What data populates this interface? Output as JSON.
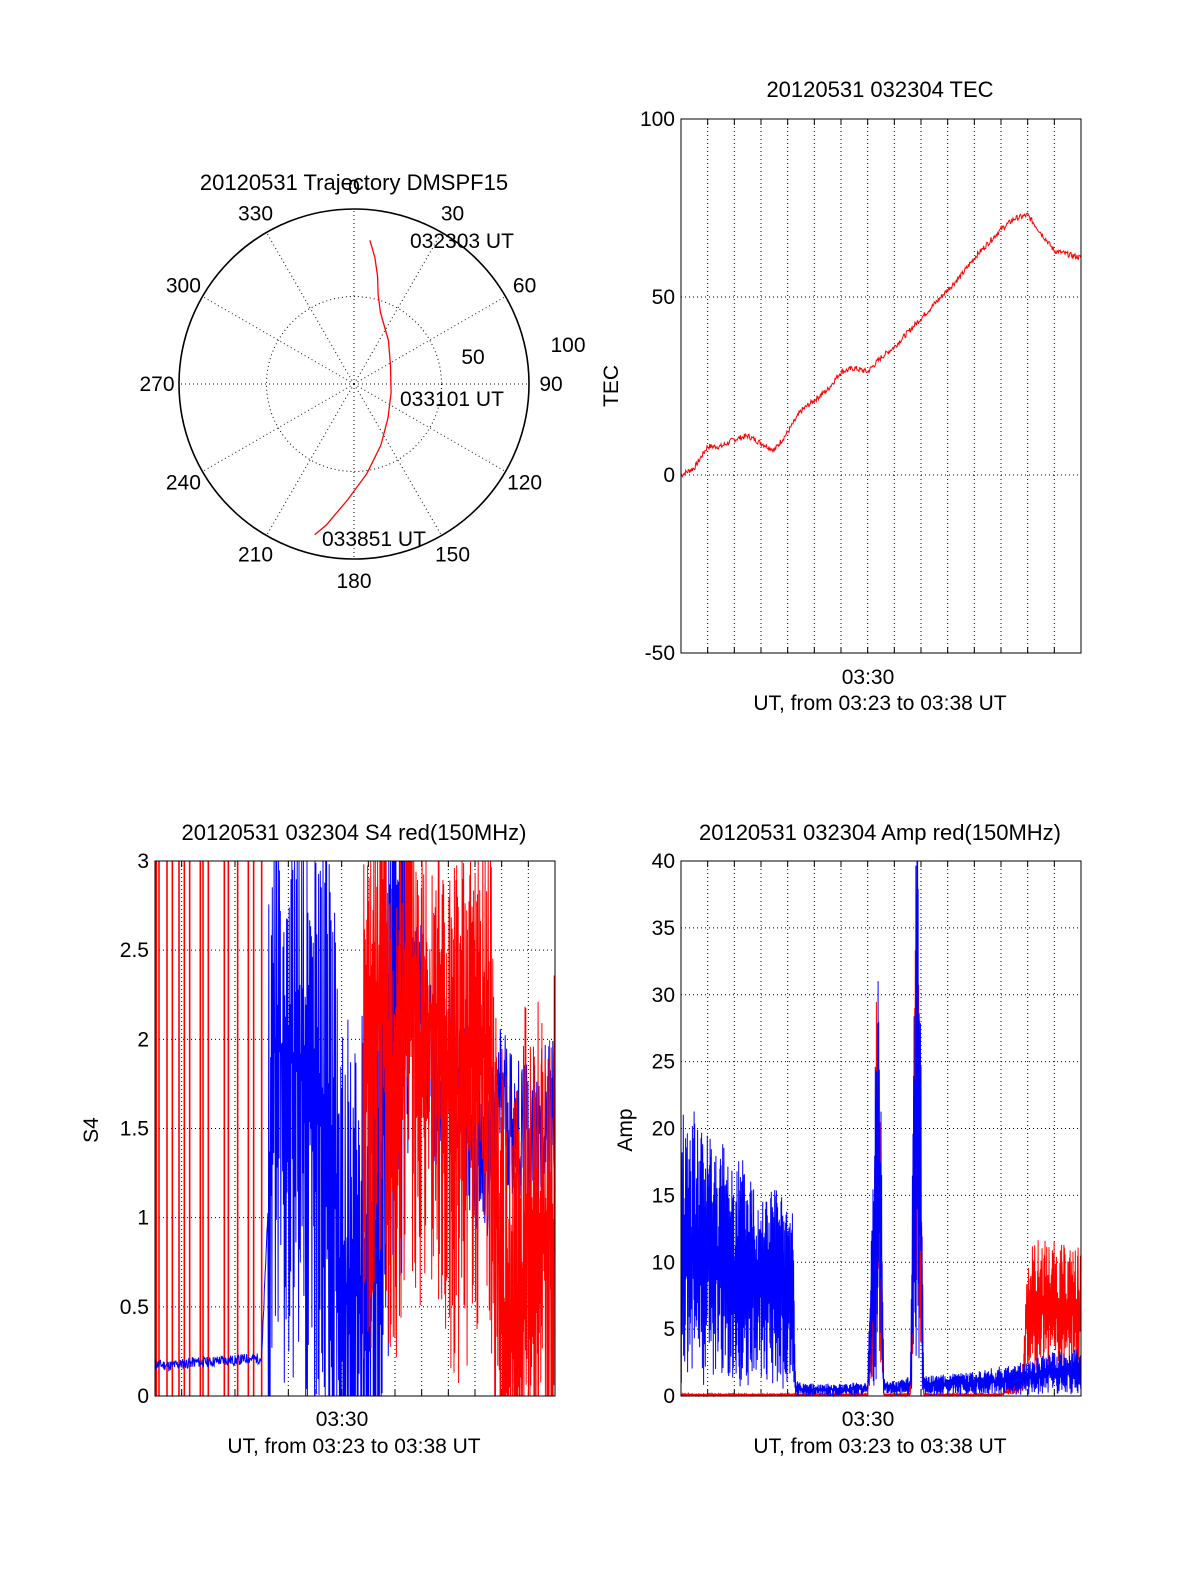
{
  "colors": {
    "red": "#ff0000",
    "blue": "#0000ff",
    "axis": "#000000",
    "grid": "#000000"
  },
  "chart_data": [
    {
      "id": "polar",
      "type": "polar",
      "title": "20120531 Trajectory DMSPF15",
      "angle_ticks": [
        "0",
        "30",
        "60",
        "90",
        "120",
        "150",
        "180",
        "210",
        "240",
        "270",
        "300",
        "330"
      ],
      "radial_ticks": [
        "50",
        "100"
      ],
      "rlim": [
        0,
        100
      ],
      "annotations": [
        "032303 UT",
        "033101 UT",
        "033851 UT"
      ],
      "trajectory": [
        {
          "az": 6.3,
          "r": 82.6
        },
        {
          "az": 9.4,
          "r": 73.2
        },
        {
          "az": 12.4,
          "r": 62.8
        },
        {
          "az": 15.0,
          "r": 53.1
        },
        {
          "az": 20.2,
          "r": 43.7
        },
        {
          "az": 38.6,
          "r": 31.6
        },
        {
          "az": 63.6,
          "r": 23.3
        },
        {
          "az": 103.4,
          "r": 21.8
        },
        {
          "az": 135.0,
          "r": 27.5
        },
        {
          "az": 156.4,
          "r": 38.3
        },
        {
          "az": 171.9,
          "r": 51.8
        },
        {
          "az": 183.2,
          "r": 66.4
        },
        {
          "az": 191.1,
          "r": 82.1
        },
        {
          "az": 194.6,
          "r": 89.0
        }
      ]
    },
    {
      "id": "tec",
      "type": "line",
      "title": "20120531 032304 TEC",
      "ylabel": "TEC",
      "xlabel": "UT, from 03:23 to 03:38 UT",
      "xtick_label": "03:30",
      "ylim": [
        -50,
        100
      ],
      "yticks": [
        "-50",
        "0",
        "50",
        "100"
      ],
      "series": [
        {
          "name": "TEC",
          "color": "red",
          "x": [
            0,
            0.5,
            1.0,
            1.5,
            2.0,
            2.5,
            3.0,
            3.5,
            4.0,
            4.5,
            5.0,
            5.5,
            6.0,
            6.5,
            7.0,
            7.5,
            8.0,
            8.5,
            9.0,
            9.5,
            10.0,
            10.5,
            11.0,
            11.5,
            12.0,
            12.5,
            13.0,
            13.5,
            14.0,
            14.5,
            15.0
          ],
          "y": [
            0,
            2,
            8,
            8,
            10,
            11,
            9,
            7,
            12,
            18,
            21,
            24,
            29,
            30,
            29,
            33,
            36,
            40,
            44,
            48,
            52,
            56,
            61,
            65,
            69,
            72,
            73,
            68,
            63,
            62,
            61
          ]
        }
      ]
    },
    {
      "id": "s4",
      "type": "line",
      "title": "20120531 032304 S4 red(150MHz)",
      "ylabel": "S4",
      "xlabel": "UT, from 03:23 to 03:38 UT",
      "xtick_label": "03:30",
      "ylim": [
        0,
        3
      ],
      "yticks": [
        "0",
        "0.5",
        "1",
        "1.5",
        "2",
        "2.5",
        "3"
      ],
      "series": [
        {
          "name": "red",
          "color": "red",
          "x": [
            8.0,
            8.5,
            9.0,
            9.5,
            10.0,
            10.5,
            11.0,
            11.5,
            12.0,
            12.5,
            13.0,
            13.5,
            14.0,
            14.5,
            15.0
          ],
          "y": [
            1.8,
            2.4,
            1.6,
            2.5,
            1.9,
            2.2,
            1.7,
            1.7,
            2.0,
            1.9,
            0.6,
            0.3,
            1.0,
            0.8,
            1.0
          ]
        },
        {
          "name": "blue",
          "color": "blue",
          "x": [
            0,
            0.5,
            1.0,
            1.5,
            2.0,
            2.5,
            3.0,
            3.5,
            4.0,
            4.5,
            5.0,
            5.5,
            6.0,
            6.5,
            7.0,
            7.5,
            8.0,
            8.5,
            9.0,
            9.5,
            10.0,
            10.5,
            11.0,
            11.5,
            12.0,
            12.5,
            13.0,
            13.5,
            14.0,
            14.5,
            15.0
          ],
          "y": [
            0.18,
            0.17,
            0.18,
            0.19,
            0.19,
            0.2,
            0.2,
            0.21,
            0.21,
            2.0,
            1.9,
            1.8,
            1.6,
            1.7,
            0.5,
            0.6,
            0.5,
            1.6,
            2.4,
            2.3,
            2.2,
            1.7,
            1.9,
            1.7,
            1.3,
            1.3,
            1.7,
            1.5,
            1.4,
            1.5,
            1.6
          ]
        }
      ]
    },
    {
      "id": "amp",
      "type": "line",
      "title": "20120531 032304 Amp red(150MHz)",
      "ylabel": "Amp",
      "xlabel": "UT, from 03:23 to 03:38 UT",
      "xtick_label": "03:30",
      "ylim": [
        0,
        40
      ],
      "yticks": [
        "0",
        "5",
        "10",
        "15",
        "20",
        "25",
        "30",
        "35",
        "40"
      ],
      "series": [
        {
          "name": "blue",
          "color": "blue",
          "x": [
            0,
            0.5,
            1.0,
            1.5,
            2.0,
            2.5,
            3.0,
            3.5,
            4.0,
            4.2,
            4.3,
            5.0,
            6.0,
            7.0,
            7.25,
            7.35,
            7.5,
            7.6,
            8.0,
            8.6,
            8.75,
            8.85,
            9.0,
            9.1,
            10.0,
            11.0,
            12.0,
            12.5,
            13.0,
            13.5,
            14.0,
            14.5,
            15.0
          ],
          "y": [
            12,
            11.5,
            11,
            10.5,
            10,
            9.5,
            9,
            8.5,
            8,
            8,
            0.6,
            0.5,
            0.5,
            0.6,
            12,
            20,
            12,
            0.7,
            0.6,
            0.8,
            17,
            30,
            14,
            0.8,
            0.9,
            1.0,
            1.2,
            1.3,
            1.4,
            1.6,
            1.8,
            1.9,
            2.0
          ]
        },
        {
          "name": "red",
          "color": "red",
          "x": [
            0,
            1.0,
            2.0,
            3.0,
            4.0,
            4.3,
            5.0,
            6.0,
            7.0,
            7.25,
            7.35,
            7.5,
            7.6,
            8.0,
            8.6,
            8.75,
            8.85,
            9.0,
            9.1,
            10.0,
            11.0,
            12.0,
            12.8,
            13.0,
            13.5,
            14.0,
            14.5,
            15.0
          ],
          "y": [
            0.1,
            0.1,
            0.1,
            0.1,
            0.1,
            0.1,
            0.1,
            0.1,
            0.1,
            10,
            19,
            10,
            0.1,
            0.1,
            0.1,
            16,
            28,
            12,
            0.1,
            0.1,
            0.1,
            0.1,
            1.0,
            6.5,
            6.8,
            6.6,
            6.4,
            6.5
          ]
        }
      ]
    }
  ]
}
